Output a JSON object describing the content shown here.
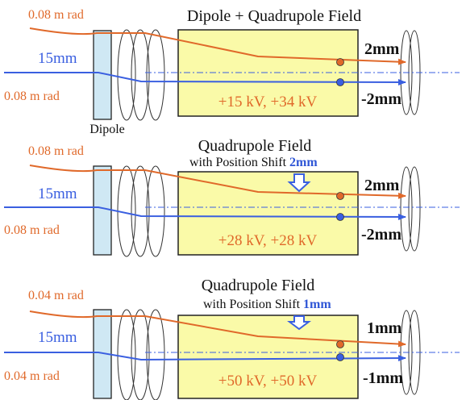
{
  "colors": {
    "orange": "#e0692a",
    "blue": "#3a5fe0",
    "box_fill": "#fafaa8",
    "dipole_fill": "#cfe8f4",
    "shift_text": "#2f56d6"
  },
  "dipole_label": "Dipole",
  "panels": [
    {
      "title": "Dipole + Quadrupole Field",
      "subtitle_prefix": "",
      "subtitle_shift": "",
      "upper_angle": "0.08 m rad",
      "offset_label": "15mm",
      "lower_angle": "0.08 m rad",
      "voltage": "+15 kV, +34 kV",
      "upper_displacement": "2mm",
      "lower_displacement": "-2mm",
      "has_shift_arrow": false
    },
    {
      "title": "Quadrupole Field",
      "subtitle_prefix": "with Position Shift",
      "subtitle_shift": "2mm",
      "upper_angle": "0.08 m rad",
      "offset_label": "15mm",
      "lower_angle": "0.08 m rad",
      "voltage": "+28 kV, +28 kV",
      "upper_displacement": "2mm",
      "lower_displacement": "-2mm",
      "has_shift_arrow": true
    },
    {
      "title": "Quadrupole Field",
      "subtitle_prefix": "with Position Shift",
      "subtitle_shift": "1mm",
      "upper_angle": "0.04 m rad",
      "offset_label": "15mm",
      "lower_angle": "0.04 m rad",
      "voltage": "+50 kV, +50 kV",
      "upper_displacement": "1mm",
      "lower_displacement": "-1mm",
      "has_shift_arrow": true
    }
  ]
}
